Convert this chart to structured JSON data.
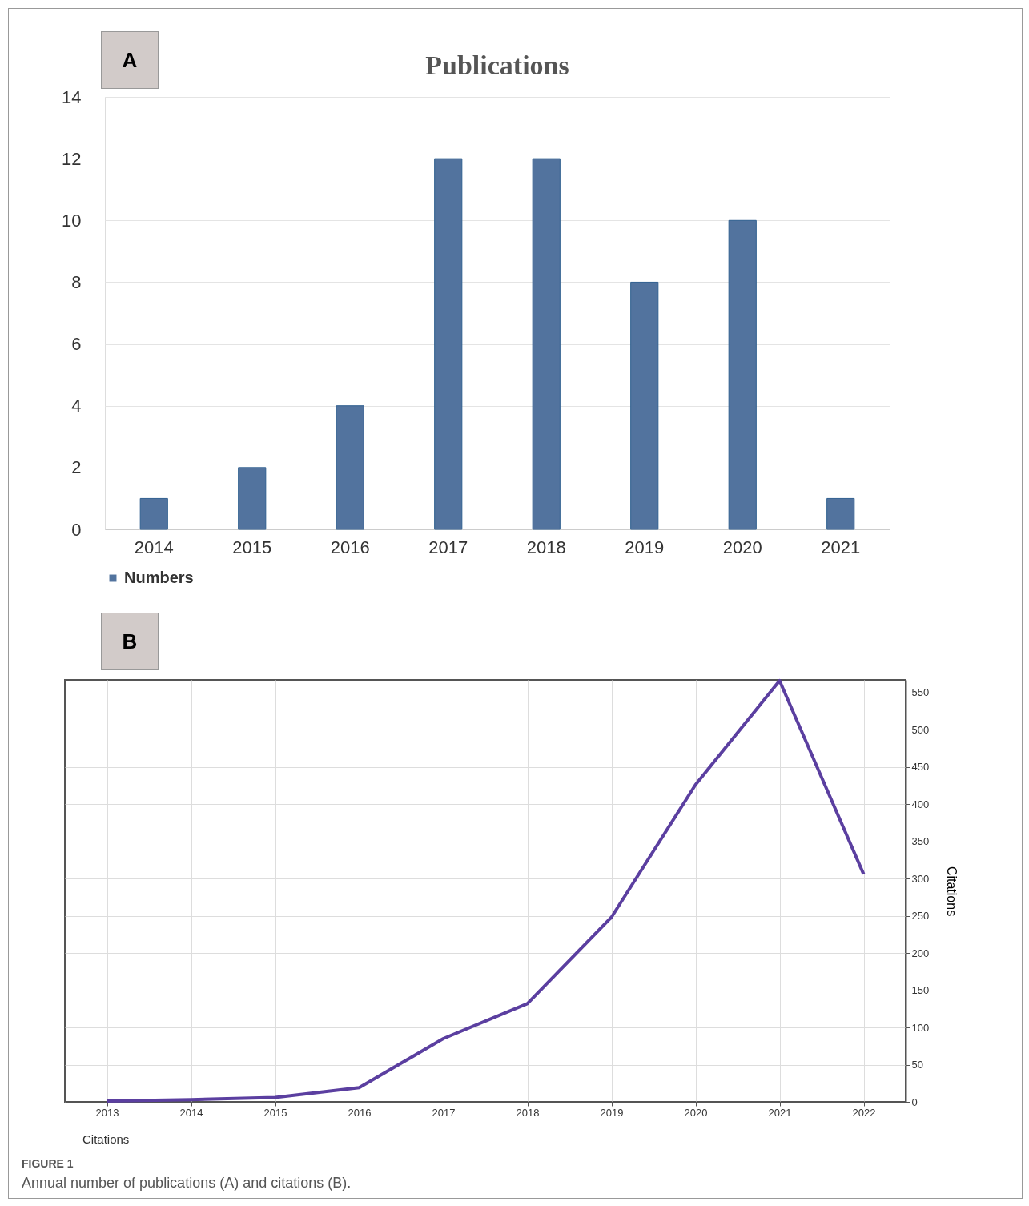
{
  "chart_data": [
    {
      "type": "bar",
      "title": "Publications",
      "categories": [
        "2014",
        "2015",
        "2016",
        "2017",
        "2018",
        "2019",
        "2020",
        "2021"
      ],
      "series": [
        {
          "name": "Numbers",
          "color": "#52739e",
          "values": [
            1,
            2,
            4,
            12,
            12,
            8,
            10,
            1
          ]
        }
      ],
      "ylim": [
        0,
        14
      ],
      "yticks": [
        0,
        2,
        4,
        6,
        8,
        10,
        12,
        14
      ],
      "grid": "y",
      "legend": "bottom",
      "annotations": [
        "A"
      ]
    },
    {
      "type": "line",
      "ylabel": "Citations",
      "x": [
        2013,
        2014,
        2015,
        2016,
        2017,
        2018,
        2019,
        2020,
        2021,
        2022
      ],
      "series": [
        {
          "name": "Citations",
          "color": "#5b3fa0",
          "values": [
            1,
            3,
            6,
            19,
            85,
            132,
            248,
            426,
            566,
            306
          ]
        }
      ],
      "xlim": [
        2012.5,
        2022.5
      ],
      "xticks": [
        2013,
        2014,
        2015,
        2016,
        2017,
        2018,
        2019,
        2020,
        2021,
        2022
      ],
      "ylim": [
        0,
        567
      ],
      "yticks": [
        0,
        50,
        100,
        150,
        200,
        250,
        300,
        350,
        400,
        450,
        500,
        550
      ],
      "grid": true,
      "legend": "bottom",
      "annotations": [
        "B",
        "FIGURE 1",
        "Annual number of publications (A) and citations (B)."
      ]
    }
  ]
}
